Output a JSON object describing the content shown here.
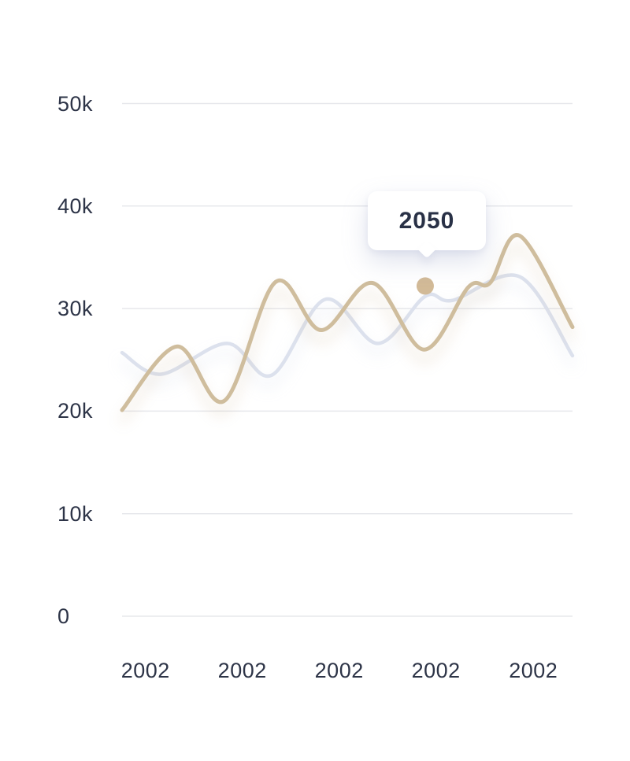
{
  "chart_data": {
    "type": "line",
    "title": "",
    "ylim": [
      0,
      50000
    ],
    "grid": "horizontal",
    "grid_color": "#e7e8ec",
    "axis_text_color": "#2d3447",
    "legend": "none",
    "y_ticks": [
      {
        "label": "50k",
        "value": 50000
      },
      {
        "label": "40k",
        "value": 40000
      },
      {
        "label": "30k",
        "value": 30000
      },
      {
        "label": "20k",
        "value": 20000
      },
      {
        "label": "10k",
        "value": 10000
      },
      {
        "label": "0",
        "value": 0
      }
    ],
    "x_ticks": [
      {
        "label": "2002",
        "pos": 0.052
      },
      {
        "label": "2002",
        "pos": 0.267
      },
      {
        "label": "2002",
        "pos": 0.482
      },
      {
        "label": "2002",
        "pos": 0.697
      },
      {
        "label": "2002",
        "pos": 0.913
      }
    ],
    "series": [
      {
        "name": "secondary-line",
        "color": "#dce1ed",
        "stroke_width": 4.5,
        "points": [
          [
            0.0,
            25700
          ],
          [
            0.087,
            23600
          ],
          [
            0.233,
            26600
          ],
          [
            0.332,
            23500
          ],
          [
            0.451,
            30900
          ],
          [
            0.568,
            26600
          ],
          [
            0.673,
            31200
          ],
          [
            0.734,
            30800
          ],
          [
            0.883,
            33100
          ],
          [
            1.0,
            25400
          ]
        ]
      },
      {
        "name": "primary-line",
        "color": "#cfbd9d",
        "stroke_width": 5,
        "points": [
          [
            0.0,
            20100
          ],
          [
            0.122,
            26300
          ],
          [
            0.227,
            21000
          ],
          [
            0.341,
            32600
          ],
          [
            0.442,
            27900
          ],
          [
            0.556,
            32500
          ],
          [
            0.67,
            26000
          ],
          [
            0.769,
            32100
          ],
          [
            0.817,
            32500
          ],
          [
            0.883,
            37100
          ],
          [
            1.0,
            28200
          ]
        ]
      }
    ],
    "tooltip": {
      "label": "2050",
      "point": [
        0.673,
        32200
      ],
      "dot_color": "#d2ba97",
      "dot_radius": 11
    }
  }
}
